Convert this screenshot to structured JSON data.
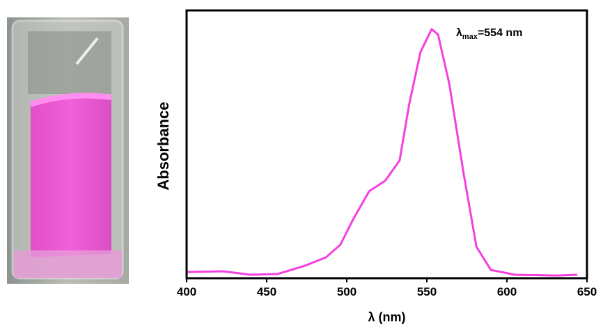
{
  "chart_data": {
    "type": "line",
    "x_label": "λ (nm)",
    "y_label": "Absorbance",
    "annotation": {
      "symbol": "λ",
      "subscript": "max",
      "text": "=554 nm"
    },
    "xlim": [
      400,
      650
    ],
    "xticks": [
      400,
      450,
      500,
      550,
      600,
      650
    ],
    "ylim": [
      0,
      1
    ],
    "series": [
      {
        "color": "#f53fe0",
        "x": [
          400,
          422.6,
          440,
          457,
          474,
          487,
          496,
          504,
          514,
          524,
          533,
          539,
          546,
          553,
          557,
          564,
          573,
          581,
          590,
          605,
          631,
          644
        ],
        "values": [
          0.023,
          0.026,
          0.013,
          0.016,
          0.047,
          0.078,
          0.125,
          0.22,
          0.325,
          0.364,
          0.44,
          0.65,
          0.844,
          0.93,
          0.91,
          0.727,
          0.39,
          0.117,
          0.031,
          0.013,
          0.01,
          0.013
        ]
      }
    ]
  }
}
